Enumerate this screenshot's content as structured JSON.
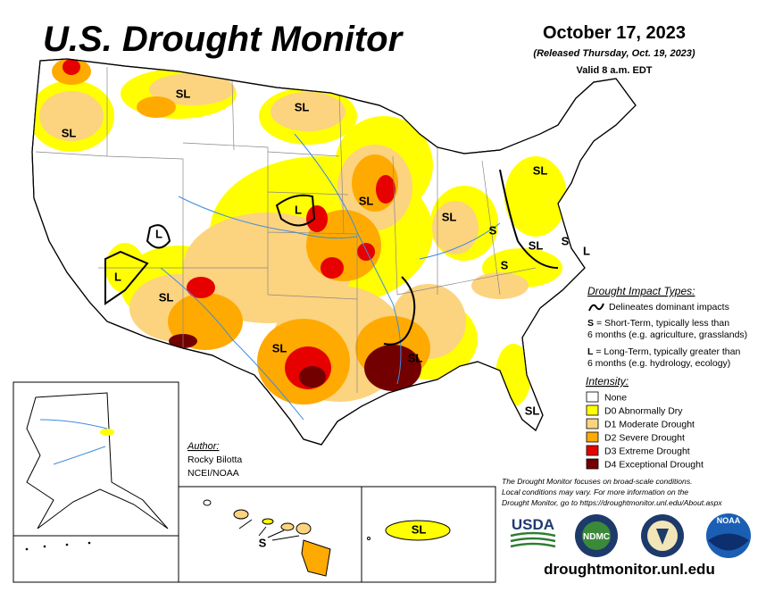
{
  "header": {
    "title": "U.S. Drought Monitor",
    "date": "October 17, 2023",
    "released": "(Released Thursday, Oct. 19, 2023)",
    "valid": "Valid 8 a.m. EDT"
  },
  "map_labels": [
    "SL",
    "SL",
    "SL",
    "SL",
    "L",
    "SL",
    "SL",
    "S",
    "SL",
    "S",
    "L",
    "S",
    "L",
    "L",
    "SL",
    "SL",
    "SL",
    "SL",
    "SL",
    "S"
  ],
  "legend": {
    "impact_title": "Drought Impact Types:",
    "impact_line": "Delineates dominant impacts",
    "impact_types": [
      {
        "key": "S",
        "lines": [
          "= Short-Term, typically less than",
          "6 months (e.g. agriculture, grasslands)"
        ]
      },
      {
        "key": "L",
        "lines": [
          "= Long-Term, typically greater than",
          "6 months (e.g. hydrology, ecology)"
        ]
      }
    ],
    "intensity_title": "Intensity:",
    "intensity": [
      {
        "label": "None",
        "color": "#ffffff"
      },
      {
        "label": "D0 Abnormally Dry",
        "color": "#ffff00"
      },
      {
        "label": "D1 Moderate Drought",
        "color": "#fcd37f"
      },
      {
        "label": "D2 Severe Drought",
        "color": "#ffaa00"
      },
      {
        "label": "D3 Extreme Drought",
        "color": "#e60000"
      },
      {
        "label": "D4 Exceptional Drought",
        "color": "#730000"
      }
    ]
  },
  "author": {
    "heading": "Author:",
    "name": "Rocky Bilotta",
    "org": "NCEI/NOAA"
  },
  "disclaimer": [
    "The Drought Monitor focuses on broad-scale conditions.",
    "Local conditions may vary. For more information on the",
    "Drought Monitor, go to https://droughtmonitor.unl.edu/About.aspx"
  ],
  "logos": [
    "USDA",
    "NDMC",
    "NOAA"
  ],
  "url": "droughtmonitor.unl.edu"
}
